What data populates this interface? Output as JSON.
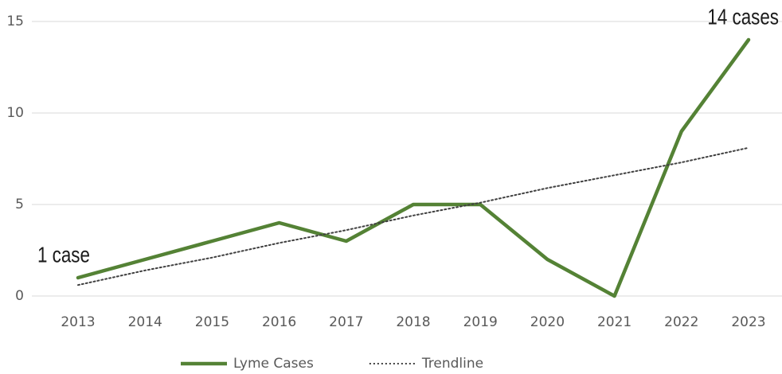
{
  "chart_data": {
    "type": "line",
    "x": [
      2013,
      2014,
      2015,
      2016,
      2017,
      2018,
      2019,
      2020,
      2021,
      2022,
      2023
    ],
    "series": [
      {
        "name": "Lyme Cases",
        "color": "#548235",
        "style": "solid",
        "values": [
          1,
          2,
          3,
          4,
          3,
          5,
          5,
          2,
          0,
          9,
          14
        ]
      },
      {
        "name": "Trendline",
        "color": "#404040",
        "style": "dotted",
        "values": [
          0.6,
          1.4,
          2.1,
          2.9,
          3.6,
          4.4,
          5.1,
          5.9,
          6.6,
          7.3,
          8.1
        ]
      }
    ],
    "annotations": [
      {
        "text": "1 case",
        "x": 2013,
        "y": 1
      },
      {
        "text": "14 cases",
        "x": 2023,
        "y": 14
      }
    ],
    "ylim": [
      0,
      15
    ],
    "yticks": [
      0,
      5,
      10,
      15
    ],
    "grid": true,
    "legend": "bottom"
  }
}
